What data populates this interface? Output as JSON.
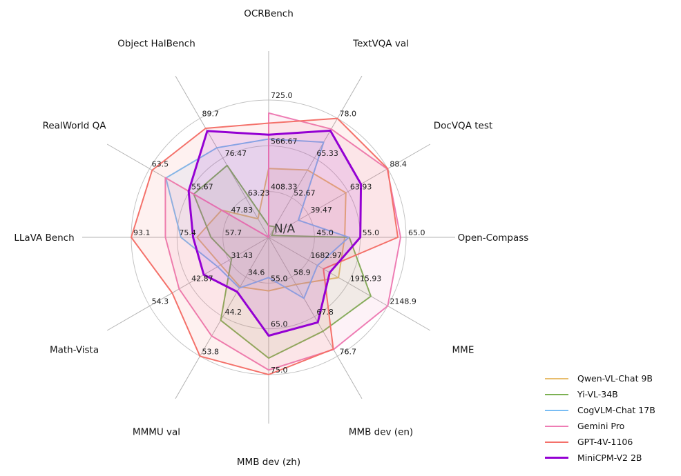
{
  "figure": {
    "center_label": "N/A",
    "background": "#ffffff"
  },
  "chart_data": {
    "type": "radar",
    "title": "",
    "center_label": "N/A",
    "legend_position": "bottom-right",
    "grid": true,
    "rings": 3,
    "axes": [
      {
        "label": "OCRBench",
        "min": 250,
        "max": 725,
        "tick_labels": [
          "408.33",
          "566.67",
          "725.0"
        ]
      },
      {
        "label": "TextVQA val",
        "min": 40,
        "max": 78,
        "tick_labels": [
          "52.67",
          "65.33",
          "78.0"
        ]
      },
      {
        "label": "DocVQA test",
        "min": 15,
        "max": 88.4,
        "tick_labels": [
          "39.47",
          "63.93",
          "88.4"
        ]
      },
      {
        "label": "Open-Compass",
        "min": 35,
        "max": 65,
        "tick_labels": [
          "45.0",
          "55.0",
          "65.0"
        ]
      },
      {
        "label": "MME",
        "min": 1450,
        "max": 2148.9,
        "tick_labels": [
          "1682.97",
          "1915.93",
          "2148.9"
        ]
      },
      {
        "label": "MMB dev (en)",
        "min": 50,
        "max": 76.7,
        "tick_labels": [
          "58.9",
          "67.8",
          "76.7"
        ]
      },
      {
        "label": "MMB dev (zh)",
        "min": 45,
        "max": 75,
        "tick_labels": [
          "55.0",
          "65.0",
          "75.0"
        ]
      },
      {
        "label": "MMMU val",
        "min": 25,
        "max": 53.8,
        "tick_labels": [
          "34.6",
          "44.2",
          "53.8"
        ]
      },
      {
        "label": "Math-Vista",
        "min": 20,
        "max": 54.3,
        "tick_labels": [
          "31.43",
          "42.87",
          "54.3"
        ]
      },
      {
        "label": "LLaVA Bench",
        "min": 40,
        "max": 93.1,
        "tick_labels": [
          "57.7",
          "75.4",
          "93.1"
        ]
      },
      {
        "label": "RealWorld QA",
        "min": 40,
        "max": 63.5,
        "tick_labels": [
          "47.83",
          "55.67",
          "63.5"
        ]
      },
      {
        "label": "Object HalBench",
        "min": 50,
        "max": 89.7,
        "tick_labels": [
          "63.23",
          "76.47",
          "89.7"
        ]
      }
    ],
    "series": [
      {
        "name": "Qwen-VL-Chat 9B",
        "color": "#e8bd6d",
        "values": [
          488,
          61.5,
          62.6,
          51.6,
          1860.0,
          60.6,
          56.7,
          37.0,
          33.8,
          67.7,
          49.3,
          56.2
        ]
      },
      {
        "name": "Yi-VL-34B",
        "color": "#7cb153",
        "values": [
          290,
          43.4,
          16.9,
          52.6,
          2050.2,
          71.1,
          71.4,
          45.1,
          30.7,
          62.3,
          54.8,
          74.0
        ]
      },
      {
        "name": "CogVLM-Chat 17B",
        "color": "#79bdf4",
        "values": [
          590,
          70.4,
          33.3,
          52.5,
          1736.6,
          63.7,
          53.8,
          37.3,
          34.7,
          73.9,
          60.3,
          79.9
        ]
      },
      {
        "name": "Gemini Pro",
        "color": "#ee7db4",
        "values": [
          680,
          74.6,
          88.1,
          63.8,
          2148.9,
          75.2,
          74.0,
          48.9,
          45.8,
          79.9,
          60.4,
          null
        ]
      },
      {
        "name": "GPT-4V-1106",
        "color": "#f4716a",
        "values": [
          645,
          78.0,
          88.4,
          63.2,
          1771.5,
          75.1,
          75.0,
          53.8,
          47.8,
          93.1,
          63.0,
          86.4
        ]
      },
      {
        "name": "MiniCPM-V2 2B",
        "color": "#9400d3",
        "values": [
          605,
          74.1,
          71.9,
          55.0,
          1808.6,
          69.1,
          66.5,
          38.2,
          38.7,
          69.2,
          55.8,
          85.5
        ]
      }
    ]
  }
}
